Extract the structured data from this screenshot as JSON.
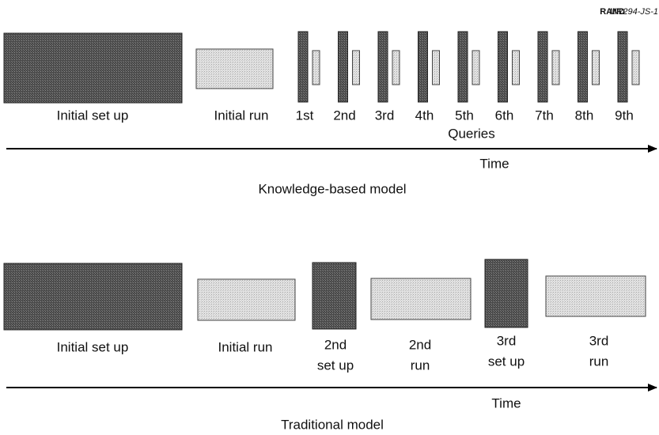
{
  "figure_id": {
    "org": "RAND",
    "code": "MR294-JS-1"
  },
  "knowledge_based": {
    "title": "Knowledge-based model",
    "initial_setup": "Initial set up",
    "initial_run": "Initial run",
    "queries": [
      "1st",
      "2nd",
      "3rd",
      "4th",
      "5th",
      "6th",
      "7th",
      "8th",
      "9th"
    ],
    "queries_label": "Queries",
    "axis_label": "Time"
  },
  "traditional": {
    "title": "Traditional model",
    "axis_label": "Time",
    "steps": [
      {
        "lines": [
          "Initial set up"
        ]
      },
      {
        "lines": [
          "Initial run"
        ]
      },
      {
        "lines": [
          "2nd",
          "set up"
        ]
      },
      {
        "lines": [
          "2nd",
          "run"
        ]
      },
      {
        "lines": [
          "3rd",
          "set up"
        ]
      },
      {
        "lines": [
          "3rd",
          "run"
        ]
      }
    ]
  }
}
